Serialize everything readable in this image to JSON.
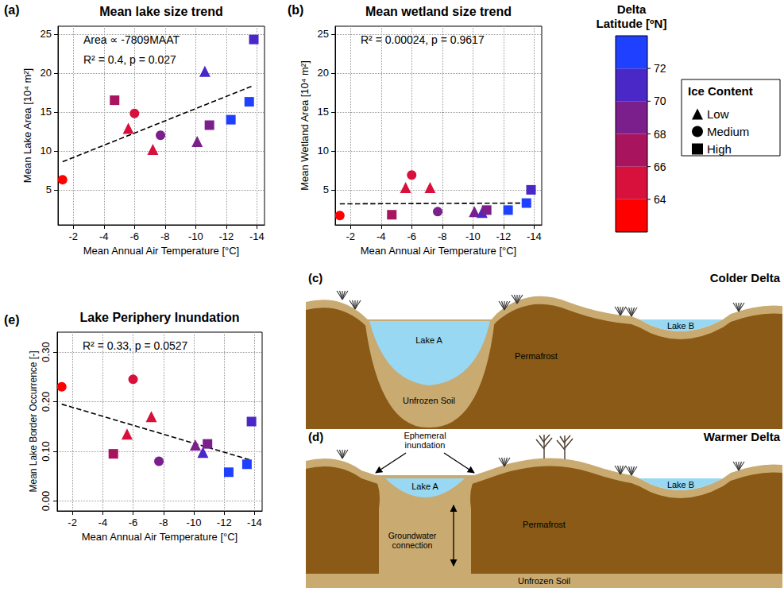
{
  "chart_data": [
    {
      "type": "scatter",
      "panel": "(a)",
      "title": "Mean lake size trend",
      "x_label": "Mean Annual Air Temperature [°C]",
      "y_label": "Mean Lake Area [10⁴ m²]",
      "annotations": [
        "Area ∝ -7809MAAT",
        "R² = 0.4, p = 0.027"
      ],
      "xlim": [
        -1,
        -14.5
      ],
      "xticks": [
        -2,
        -4,
        -6,
        -8,
        -10,
        -12,
        -14
      ],
      "ylim": [
        0.5,
        26
      ],
      "yticks": [
        5,
        10,
        15,
        20,
        25
      ],
      "grid": true,
      "series": [
        {
          "name": "Low",
          "marker": "triangle",
          "x": [
            -5.6,
            -7.2,
            -10.1,
            -10.6
          ],
          "values": [
            12.9,
            10.2,
            11.2,
            20.2
          ],
          "latitude": [
            64.5,
            65,
            69.5,
            71
          ]
        },
        {
          "name": "Medium",
          "marker": "circle",
          "x": [
            -1.3,
            -6.0,
            -7.7
          ],
          "values": [
            6.3,
            14.8,
            12.0
          ],
          "latitude": [
            63,
            65.5,
            69
          ]
        },
        {
          "name": "High",
          "marker": "square",
          "x": [
            -4.7,
            -10.9,
            -12.3,
            -13.5,
            -13.8
          ],
          "values": [
            16.5,
            13.3,
            14.0,
            16.3,
            24.3
          ],
          "latitude": [
            67,
            69.5,
            72.5,
            72.5,
            71
          ]
        }
      ],
      "trend": {
        "x": [
          -1.3,
          -13.8
        ],
        "values": [
          8.6,
          18.4
        ],
        "line_style": "dashed"
      }
    },
    {
      "type": "scatter",
      "panel": "(b)",
      "title": "Mean wetland size trend",
      "x_label": "Mean Annual Air Temperature [°C]",
      "y_label": "Mean Wetland Area [10⁴ m²]",
      "annotations": [
        "R² = 0.00024, p = 0.9617"
      ],
      "xlim": [
        -1,
        -14.5
      ],
      "xticks": [
        -2,
        -4,
        -6,
        -8,
        -10,
        -12,
        -14
      ],
      "ylim": [
        0.5,
        26
      ],
      "yticks": [
        5,
        10,
        15,
        20,
        25
      ],
      "grid": true,
      "legend": "right",
      "series": [
        {
          "name": "Low",
          "marker": "triangle",
          "x": [
            -5.6,
            -7.2,
            -10.1,
            -10.6
          ],
          "values": [
            5.3,
            5.3,
            2.2,
            2.1
          ],
          "latitude": [
            64.5,
            65,
            69.5,
            71
          ]
        },
        {
          "name": "Medium",
          "marker": "circle",
          "x": [
            -1.3,
            -6.0,
            -7.7
          ],
          "values": [
            1.7,
            6.9,
            2.2
          ],
          "latitude": [
            63,
            65.5,
            69
          ]
        },
        {
          "name": "High",
          "marker": "square",
          "x": [
            -4.7,
            -10.9,
            -12.3,
            -13.5,
            -13.8
          ],
          "values": [
            1.8,
            2.4,
            2.4,
            3.3,
            5.0
          ],
          "latitude": [
            67,
            69.5,
            72.5,
            72.5,
            71
          ]
        }
      ],
      "trend": {
        "x": [
          -1.3,
          -13.8
        ],
        "values": [
          3.2,
          3.3
        ],
        "line_style": "dashed"
      }
    },
    {
      "type": "scatter",
      "panel": "(e)",
      "title": "Lake Periphery Inundation",
      "x_label": "Mean Annual Air Temperature [°C]",
      "y_label": "Mean Lake Border Occurrence [-]",
      "annotations": [
        "R² = 0.33, p = 0.0527"
      ],
      "xlim": [
        -1,
        -14.5
      ],
      "xticks": [
        -2,
        -4,
        -6,
        -8,
        -10,
        -12,
        -14
      ],
      "ylim": [
        -0.02,
        0.34
      ],
      "yticks": [
        {
          "value": 0,
          "label": "0.00"
        },
        {
          "value": 0.1,
          "label": "0.10"
        },
        {
          "value": 0.2,
          "label": "0.20"
        },
        {
          "value": 0.3,
          "label": "0.30"
        }
      ],
      "grid": true,
      "series": [
        {
          "name": "Low",
          "marker": "triangle",
          "x": [
            -5.6,
            -7.2,
            -10.1,
            -10.6
          ],
          "values": [
            0.135,
            0.17,
            0.113,
            0.098
          ],
          "latitude": [
            64.5,
            65,
            69.5,
            71
          ]
        },
        {
          "name": "Medium",
          "marker": "circle",
          "x": [
            -1.3,
            -6.0,
            -7.7
          ],
          "values": [
            0.23,
            0.245,
            0.08
          ],
          "latitude": [
            63,
            65.5,
            69
          ]
        },
        {
          "name": "High",
          "marker": "square",
          "x": [
            -4.7,
            -10.9,
            -12.3,
            -13.5,
            -13.8
          ],
          "values": [
            0.095,
            0.115,
            0.058,
            0.074,
            0.16
          ],
          "latitude": [
            67,
            69.5,
            72.5,
            72.5,
            71
          ]
        }
      ],
      "trend": {
        "x": [
          -1.3,
          -13.8
        ],
        "values": [
          0.195,
          0.082
        ],
        "line_style": "dashed"
      }
    }
  ],
  "colorbar": {
    "title": [
      "Delta",
      "Latitude [ºN]"
    ],
    "bins": [
      62,
      64,
      66,
      68,
      70,
      72,
      74
    ],
    "colors": [
      "#ff0000",
      "#d8103c",
      "#a8145e",
      "#7a1f8c",
      "#4a28c8",
      "#2040ff"
    ],
    "ticks": [
      64,
      66,
      68,
      70,
      72
    ]
  },
  "legend_title": "Ice Content",
  "diagrams": [
    {
      "panel": "(c)",
      "title": "Colder Delta",
      "lake_a": "Lake A",
      "lake_b": "Lake B",
      "unfrozen": "Unfrozen Soil",
      "permafrost": "Permafrost"
    },
    {
      "panel": "(d)",
      "title": "Warmer Delta",
      "lake_a": "Lake A",
      "lake_b": "Lake B",
      "unfrozen": "Unfrozen Soil",
      "permafrost": "Permafrost",
      "inundation": "Ephemeral inundation",
      "groundwater": "Groundwater connection"
    }
  ]
}
